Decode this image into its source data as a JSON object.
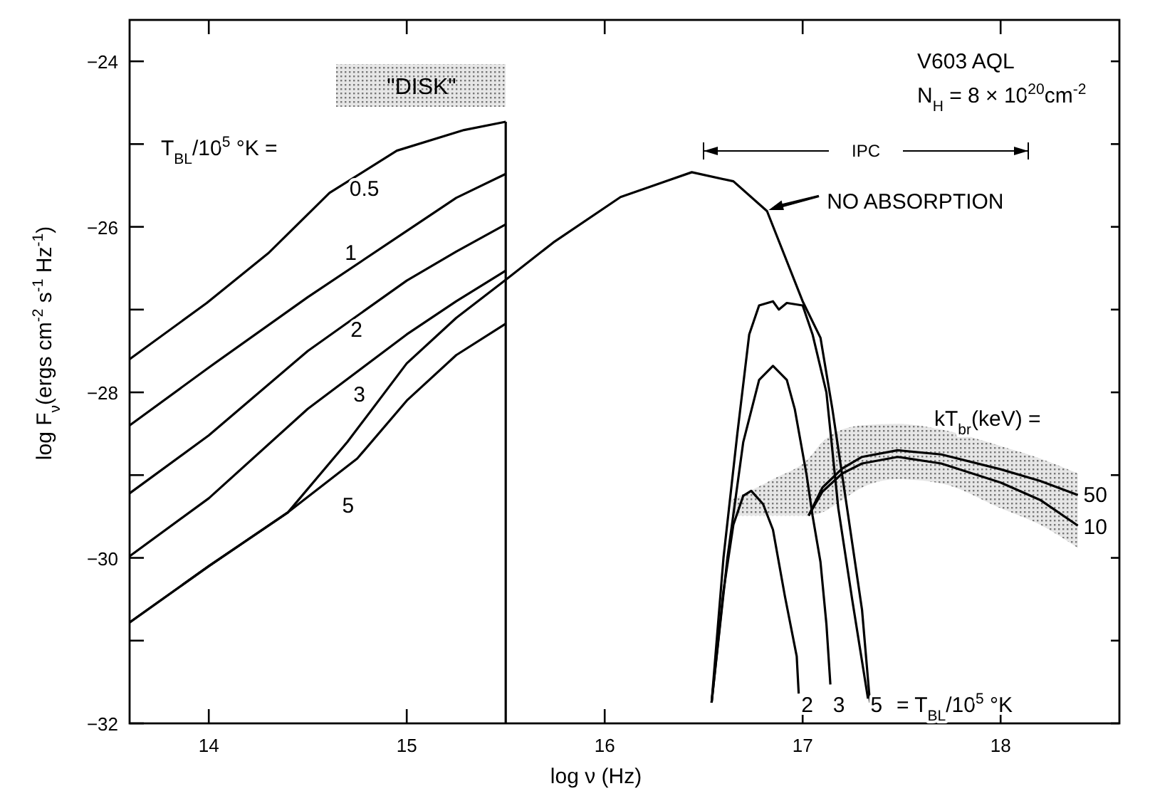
{
  "chart_data": {
    "type": "line",
    "xlabel": "log ν (Hz)",
    "ylabel": "log F$_{ν}$(ergs cm$^{-2}$ s$^{-1}$ Hz$^{-1}$)",
    "xlim": [
      13.6,
      18.6
    ],
    "xticks": [
      14,
      15,
      16,
      17,
      18
    ],
    "ylim": [
      -32,
      -23.5
    ],
    "yticks": [
      -32,
      {
        "value": -31,
        "label": null
      },
      -30,
      {
        "value": -29,
        "label": null
      },
      -28,
      {
        "value": -27,
        "label": null
      },
      -26,
      {
        "value": -25,
        "label": null
      },
      -24
    ],
    "grid": false,
    "marker": "none",
    "line_style": "solid",
    "annotations": [
      "V603 AQL",
      "N$_{H}$ = 8 × 10$^{20}$cm$^{-2}$",
      "T$_{BL}$/10$^{5}$ °K =",
      "= T$_{BL}$/10$^{5}$ °K",
      "kT$_{br}$(keV) =",
      "\"DISK\"",
      "IPC"
    ],
    "series": [
      {
        "name": "0.5",
        "color": "#000000",
        "x": [
          13.6,
          13.99,
          14.3,
          14.61,
          14.95,
          15.29,
          15.5
        ],
        "values": [
          -27.6,
          -26.92,
          -26.32,
          -25.59,
          -25.08,
          -24.83,
          -24.73
        ]
      },
      {
        "name": "1",
        "color": "#000000",
        "x": [
          13.6,
          14,
          14.5,
          15,
          15.25,
          15.5
        ],
        "values": [
          -28.4,
          -27.7,
          -26.85,
          -26.05,
          -25.65,
          -25.36
        ]
      },
      {
        "name": "2",
        "color": "#000000",
        "x": [
          13.6,
          14,
          14.5,
          15,
          15.25,
          15.5
        ],
        "values": [
          -29.22,
          -28.52,
          -27.5,
          -26.65,
          -26.3,
          -25.97
        ]
      },
      {
        "name": "3",
        "color": "#000000",
        "x": [
          13.6,
          14,
          14.5,
          15,
          15.25,
          15.5
        ],
        "values": [
          -29.98,
          -29.28,
          -28.2,
          -27.3,
          -26.9,
          -26.53
        ]
      },
      {
        "name": "5",
        "color": "#000000",
        "x": [
          13.6,
          14,
          14.4,
          14.75,
          15,
          15.25,
          15.5
        ],
        "values": [
          -30.78,
          -30.1,
          -29.45,
          -28.8,
          -28.1,
          -27.55,
          -27.17
        ]
      },
      {
        "color": "#000000",
        "x": [
          15.5,
          15.5
        ],
        "values": [
          -32,
          -24.73
        ]
      },
      {
        "name": "NO ABSORPTION",
        "color": "#000000",
        "x": [
          13.6,
          14,
          14.4,
          14.7,
          15,
          15.25,
          15.5,
          15.74,
          16.08,
          16.44,
          16.65,
          16.82,
          17.0,
          17.09,
          17.15,
          17.23,
          17.3,
          17.34
        ],
        "values": [
          -30.78,
          -30.1,
          -29.45,
          -28.6,
          -27.65,
          -27.1,
          -26.64,
          -26.19,
          -25.64,
          -25.34,
          -25.45,
          -25.81,
          -26.9,
          -27.34,
          -28.2,
          -29.49,
          -30.63,
          -31.75
        ]
      },
      {
        "name": "2",
        "color": "#000000",
        "x": [
          16.54,
          16.6,
          16.65,
          16.7,
          16.74,
          16.8,
          16.85,
          16.91,
          16.97,
          16.98
        ],
        "values": [
          -31.75,
          -30.4,
          -29.6,
          -29.25,
          -29.19,
          -29.35,
          -29.66,
          -30.46,
          -31.19,
          -31.64
        ]
      },
      {
        "name": "3",
        "color": "#000000",
        "x": [
          16.54,
          16.62,
          16.7,
          16.78,
          16.85,
          16.92,
          16.96,
          17.02,
          17.05,
          17.09,
          17.12,
          17.14
        ],
        "values": [
          -31.75,
          -30.0,
          -28.6,
          -27.85,
          -27.68,
          -27.85,
          -28.2,
          -29.0,
          -29.49,
          -30.05,
          -30.8,
          -31.53
        ]
      },
      {
        "name": "5",
        "color": "#000000",
        "x": [
          16.54,
          16.6,
          16.67,
          16.73,
          16.78,
          16.85,
          16.88,
          16.92,
          17.0,
          17.05,
          17.12,
          17.18,
          17.25,
          17.33
        ],
        "values": [
          -31.75,
          -30.0,
          -28.5,
          -27.3,
          -26.95,
          -26.9,
          -27.0,
          -26.92,
          -26.95,
          -27.3,
          -28.0,
          -29.4,
          -30.5,
          -31.7
        ]
      },
      {
        "name": "50",
        "color": "#000000",
        "x": [
          17.03,
          17.1,
          17.2,
          17.3,
          17.48,
          17.7,
          18.0,
          18.2,
          18.39
        ],
        "values": [
          -29.49,
          -29.15,
          -28.92,
          -28.78,
          -28.7,
          -28.75,
          -28.93,
          -29.07,
          -29.24
        ]
      },
      {
        "name": "10",
        "color": "#000000",
        "x": [
          16.64,
          16.85,
          17.03,
          17.1,
          17.2,
          17.3,
          17.48,
          17.7,
          18.0,
          18.2,
          18.39
        ],
        "values": [
          null,
          null,
          -29.49,
          -29.2,
          -28.98,
          -28.86,
          -28.78,
          -28.86,
          -29.09,
          -29.3,
          -29.61
        ],
        "lower": [
          -29.49,
          -29.49,
          -29.49,
          -29.45,
          -29.3,
          -29.15,
          -29.05,
          -29.1,
          -29.4,
          -29.6,
          -29.88
        ],
        "upper": [
          -29.3,
          -29.05,
          -28.8,
          -28.6,
          -28.45,
          -28.4,
          -28.38,
          -28.45,
          -28.65,
          -28.8,
          -28.98
        ]
      }
    ]
  }
}
